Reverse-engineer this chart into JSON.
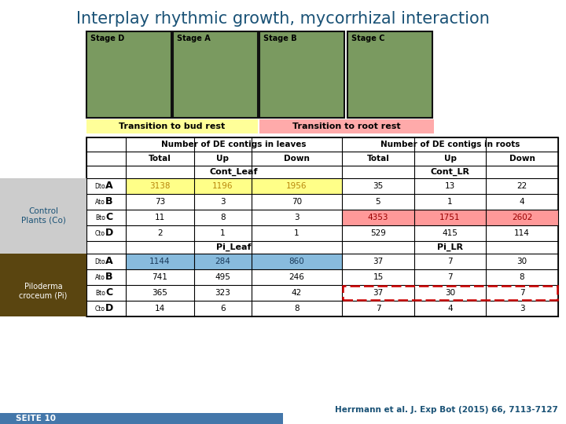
{
  "title": "Interplay rhythmic growth, mycorrhizal interaction",
  "title_color": "#1a5276",
  "title_fontsize": 15,
  "bg_color": "#ffffff",
  "stage_labels": [
    "Stage D",
    "Stage A",
    "Stage B",
    "Stage C"
  ],
  "transition_bud": "Transition to bud rest",
  "transition_root": "Transition to root rest",
  "transition_bud_color": "#ffff99",
  "transition_root_color": "#ffaaaa",
  "header1": "Number of DE contigs in leaves",
  "header2": "Number of DE contigs in roots",
  "section_headers_left": [
    "Cont_Leaf",
    "Pi_Leaf"
  ],
  "section_headers_right": [
    "Cont_LR",
    "Pi_LR"
  ],
  "row_label_pairs": [
    [
      "Dto",
      "A"
    ],
    [
      "Ato",
      "B"
    ],
    [
      "Bto",
      "C"
    ],
    [
      "Cto",
      "D"
    ]
  ],
  "data_cont_leaf": [
    [
      3138,
      1196,
      1956
    ],
    [
      73,
      3,
      70
    ],
    [
      11,
      8,
      3
    ],
    [
      2,
      1,
      1
    ]
  ],
  "data_cont_lr": [
    [
      35,
      13,
      22
    ],
    [
      5,
      1,
      4
    ],
    [
      4353,
      1751,
      2602
    ],
    [
      529,
      415,
      114
    ]
  ],
  "data_pi_leaf": [
    [
      1144,
      284,
      860
    ],
    [
      741,
      495,
      246
    ],
    [
      365,
      323,
      42
    ],
    [
      14,
      6,
      8
    ]
  ],
  "data_pi_lr": [
    [
      37,
      7,
      30
    ],
    [
      15,
      7,
      8
    ],
    [
      37,
      30,
      7
    ],
    [
      7,
      4,
      3
    ]
  ],
  "highlight_yellow": "#ffff88",
  "highlight_red": "#ff9999",
  "highlight_blue": "#88bbdd",
  "dashed_red": "#cc0000",
  "sidebar_top_color": "#cccccc",
  "sidebar_bot_color": "#5a4510",
  "footer_text": "Herrmann et al. J. Exp Bot (2015) 66, 7113-7127",
  "footer_color": "#1a5276",
  "seite_text": "SEITE 10",
  "seite_bg": "#4477aa",
  "photo_green": "#7a9a60",
  "photo_border": "#111111",
  "col_headers": [
    "Total",
    "Up",
    "Down"
  ]
}
